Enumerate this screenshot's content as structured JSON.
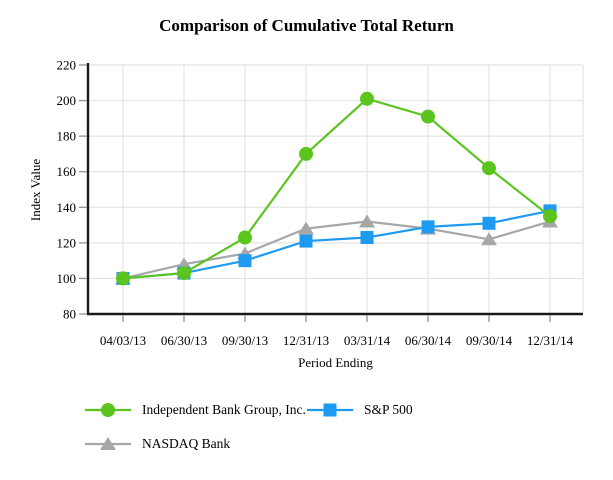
{
  "title": "Comparison of Cumulative Total Return",
  "chart_data": {
    "type": "line",
    "title": "Comparison of Cumulative Total Return",
    "xlabel": "Period Ending",
    "ylabel": "Index Value",
    "ylim": [
      80,
      220
    ],
    "yticks": [
      80,
      100,
      120,
      140,
      160,
      180,
      200,
      220
    ],
    "grid": true,
    "legend_position": "bottom",
    "categories": [
      "04/03/13",
      "06/30/13",
      "09/30/13",
      "12/31/13",
      "03/31/14",
      "06/30/14",
      "09/30/14",
      "12/31/14"
    ],
    "series": [
      {
        "name": "Independent Bank Group, Inc.",
        "marker": "circle",
        "color": "#5CC41F",
        "values": [
          100,
          103,
          123,
          170,
          201,
          191,
          162,
          135
        ]
      },
      {
        "name": "S&P 500",
        "marker": "square",
        "color": "#1E9BF0",
        "values": [
          100,
          103,
          110,
          121,
          123,
          129,
          131,
          138
        ]
      },
      {
        "name": "NASDAQ Bank",
        "marker": "triangle",
        "color": "#A7A7A7",
        "values": [
          100,
          108,
          114,
          128,
          132,
          128,
          122,
          132
        ]
      }
    ]
  },
  "colors": {
    "axis": "#1a1a1a",
    "grid": "#e4e4e4",
    "tick": "#999999",
    "text": "#000000",
    "background": "#ffffff"
  }
}
